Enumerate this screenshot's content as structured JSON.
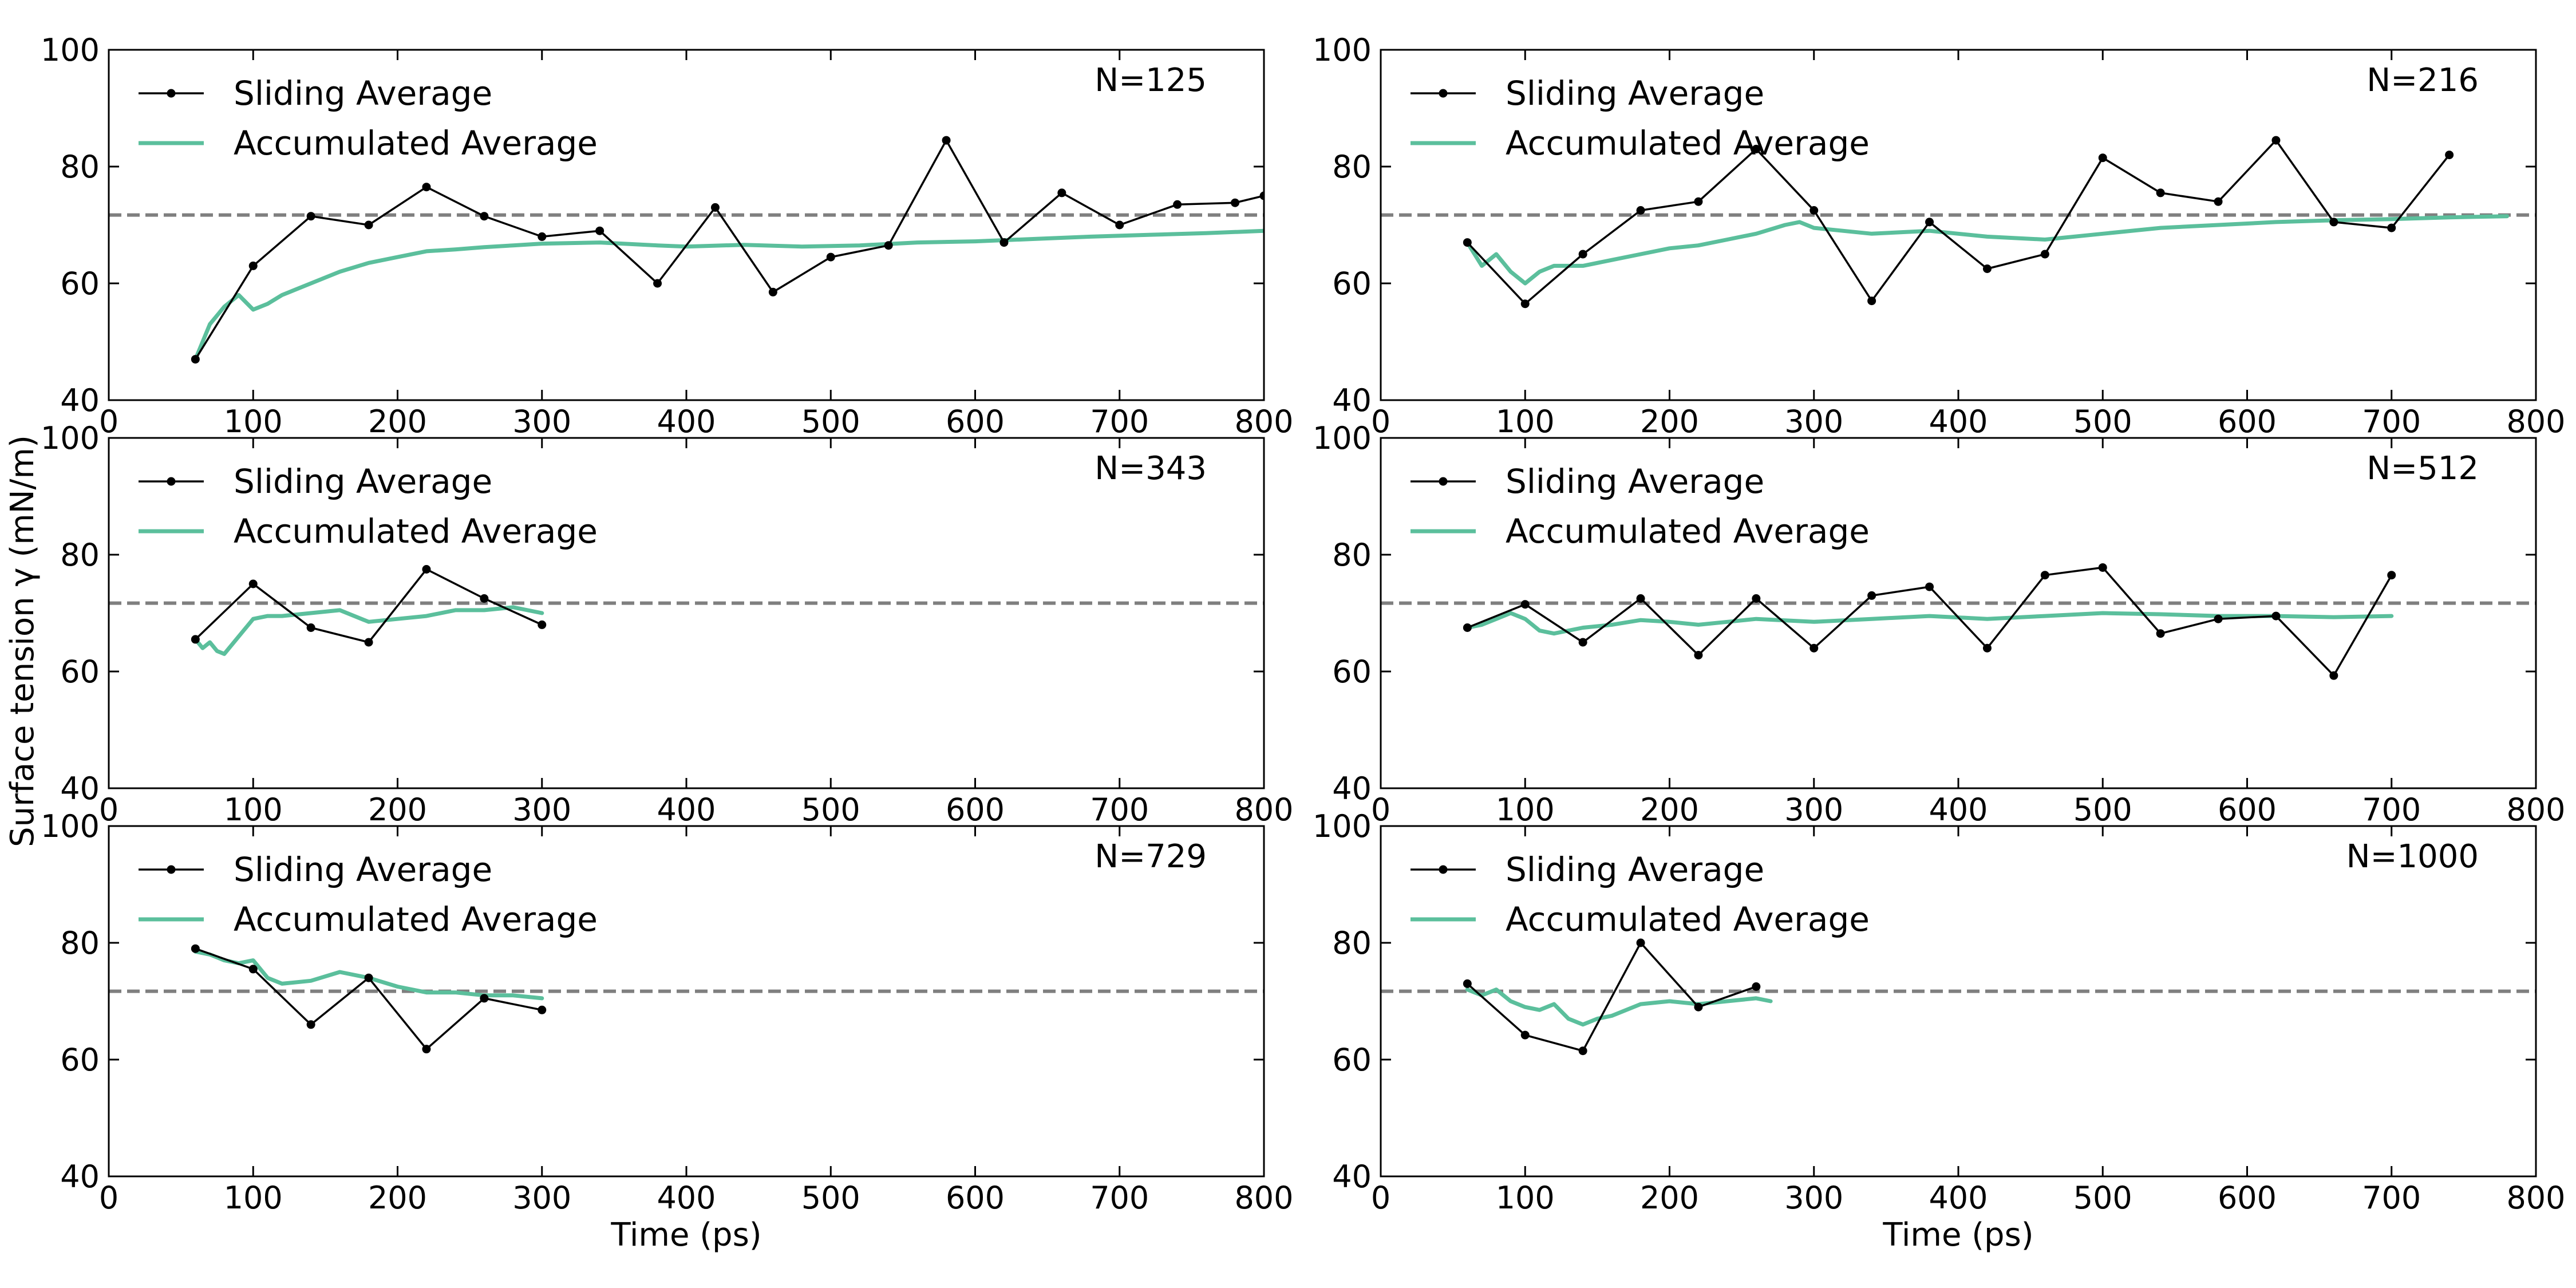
{
  "figure": {
    "ylabel": "Surface tension γ (mN/m)",
    "xlabel": "Time (ps)"
  },
  "colors": {
    "sliding": "#000000",
    "accumulated": "#5bbf9c",
    "reference": "#7f7f7f"
  },
  "chart_data": [
    {
      "type": "line",
      "annotation": "N=125",
      "xlim": [
        0,
        800
      ],
      "ylim": [
        40,
        100
      ],
      "xticks": [
        0,
        100,
        200,
        300,
        400,
        500,
        600,
        700,
        800
      ],
      "yticks": [
        40,
        60,
        80,
        100
      ],
      "xlabel": "",
      "ylabel": "",
      "reference_line": 71.7,
      "legend": {
        "location": "top-left",
        "entries": [
          "Sliding Average",
          "Accumulated Average"
        ]
      },
      "series": [
        {
          "name": "Sliding Average",
          "marker": "dot",
          "x": [
            60,
            100,
            140,
            180,
            220,
            260,
            300,
            340,
            380,
            420,
            460,
            500,
            540,
            580,
            620,
            660,
            700,
            740,
            780,
            800
          ],
          "y": [
            47,
            63,
            71.5,
            70,
            76.5,
            71.5,
            68,
            69,
            60,
            73,
            58.5,
            64.5,
            66.5,
            84.5,
            67,
            75.5,
            70,
            73.5,
            73.8,
            75
          ]
        },
        {
          "name": "Accumulated Average",
          "marker": "none",
          "x": [
            60,
            70,
            80,
            90,
            100,
            110,
            120,
            140,
            160,
            180,
            200,
            220,
            240,
            260,
            280,
            300,
            340,
            380,
            400,
            440,
            480,
            520,
            560,
            600,
            640,
            680,
            720,
            760,
            800
          ],
          "y": [
            47,
            53,
            56,
            58,
            55.5,
            56.5,
            58,
            60,
            62,
            63.5,
            64.5,
            65.5,
            65.8,
            66.2,
            66.5,
            66.8,
            67,
            66.5,
            66.3,
            66.6,
            66.3,
            66.5,
            67,
            67.2,
            67.6,
            68,
            68.3,
            68.6,
            69
          ]
        }
      ]
    },
    {
      "type": "line",
      "annotation": "N=216",
      "xlim": [
        0,
        800
      ],
      "ylim": [
        40,
        100
      ],
      "xticks": [
        0,
        100,
        200,
        300,
        400,
        500,
        600,
        700,
        800
      ],
      "yticks": [
        40,
        60,
        80,
        100
      ],
      "xlabel": "",
      "ylabel": "",
      "reference_line": 71.7,
      "legend": {
        "location": "top-left",
        "entries": [
          "Sliding Average",
          "Accumulated Average"
        ]
      },
      "series": [
        {
          "name": "Sliding Average",
          "marker": "dot",
          "x": [
            60,
            100,
            140,
            180,
            220,
            260,
            300,
            340,
            380,
            420,
            460,
            500,
            540,
            580,
            620,
            660,
            700,
            740
          ],
          "y": [
            67,
            56.5,
            65,
            72.5,
            74,
            83,
            72.5,
            57,
            70.5,
            62.5,
            65,
            81.5,
            75.5,
            74,
            84.5,
            70.5,
            69.5,
            82
          ]
        },
        {
          "name": "Accumulated Average",
          "marker": "none",
          "x": [
            60,
            70,
            80,
            90,
            100,
            110,
            120,
            140,
            160,
            180,
            200,
            220,
            240,
            260,
            280,
            290,
            300,
            320,
            340,
            380,
            420,
            460,
            500,
            540,
            580,
            620,
            660,
            700,
            740,
            780
          ],
          "y": [
            67,
            63,
            65,
            62,
            60,
            62,
            63,
            63,
            64,
            65,
            66,
            66.5,
            67.5,
            68.5,
            70,
            70.5,
            69.5,
            69,
            68.5,
            69,
            68,
            67.5,
            68.5,
            69.5,
            70,
            70.5,
            70.8,
            71,
            71.3,
            71.5
          ]
        }
      ]
    },
    {
      "type": "line",
      "annotation": "N=343",
      "xlim": [
        0,
        800
      ],
      "ylim": [
        40,
        100
      ],
      "xticks": [
        0,
        100,
        200,
        300,
        400,
        500,
        600,
        700,
        800
      ],
      "yticks": [
        40,
        60,
        80,
        100
      ],
      "xlabel": "",
      "ylabel": "",
      "reference_line": 71.7,
      "legend": {
        "location": "top-left",
        "entries": [
          "Sliding Average",
          "Accumulated Average"
        ]
      },
      "series": [
        {
          "name": "Sliding Average",
          "marker": "dot",
          "x": [
            60,
            100,
            140,
            180,
            220,
            260,
            300
          ],
          "y": [
            65.5,
            75,
            67.5,
            65,
            77.5,
            72.5,
            68
          ]
        },
        {
          "name": "Accumulated Average",
          "marker": "none",
          "x": [
            60,
            65,
            70,
            75,
            80,
            90,
            100,
            110,
            120,
            140,
            160,
            180,
            200,
            220,
            240,
            260,
            280,
            300
          ],
          "y": [
            65.5,
            64,
            65,
            63.5,
            63,
            66,
            69,
            69.5,
            69.5,
            70,
            70.5,
            68.5,
            69,
            69.5,
            70.5,
            70.5,
            71,
            70
          ]
        }
      ]
    },
    {
      "type": "line",
      "annotation": "N=512",
      "xlim": [
        0,
        800
      ],
      "ylim": [
        40,
        100
      ],
      "xticks": [
        0,
        100,
        200,
        300,
        400,
        500,
        600,
        700,
        800
      ],
      "yticks": [
        40,
        60,
        80,
        100
      ],
      "xlabel": "",
      "ylabel": "",
      "reference_line": 71.7,
      "legend": {
        "location": "top-left",
        "entries": [
          "Sliding Average",
          "Accumulated Average"
        ]
      },
      "series": [
        {
          "name": "Sliding Average",
          "marker": "dot",
          "x": [
            60,
            100,
            140,
            180,
            220,
            260,
            300,
            340,
            380,
            420,
            460,
            500,
            540,
            580,
            620,
            660,
            700
          ],
          "y": [
            67.5,
            71.5,
            65,
            72.5,
            62.8,
            72.5,
            64,
            73,
            74.5,
            64,
            76.5,
            77.8,
            66.5,
            69,
            69.5,
            59.3,
            76.5
          ]
        },
        {
          "name": "Accumulated Average",
          "marker": "none",
          "x": [
            60,
            70,
            80,
            90,
            100,
            110,
            120,
            140,
            160,
            180,
            200,
            220,
            240,
            260,
            300,
            340,
            380,
            420,
            460,
            500,
            540,
            580,
            620,
            660,
            700
          ],
          "y": [
            67.5,
            68,
            69,
            70,
            69,
            67,
            66.5,
            67.5,
            68,
            68.8,
            68.5,
            68,
            68.5,
            69,
            68.5,
            69,
            69.5,
            69,
            69.5,
            70,
            69.8,
            69.5,
            69.5,
            69.3,
            69.5
          ]
        }
      ]
    },
    {
      "type": "line",
      "annotation": "N=729",
      "xlim": [
        0,
        800
      ],
      "ylim": [
        40,
        100
      ],
      "xticks": [
        0,
        100,
        200,
        300,
        400,
        500,
        600,
        700,
        800
      ],
      "yticks": [
        40,
        60,
        80,
        100
      ],
      "xlabel": "Time (ps)",
      "ylabel": "",
      "reference_line": 71.7,
      "legend": {
        "location": "top-left",
        "entries": [
          "Sliding Average",
          "Accumulated Average"
        ]
      },
      "series": [
        {
          "name": "Sliding Average",
          "marker": "dot",
          "x": [
            60,
            100,
            140,
            180,
            220,
            260,
            300
          ],
          "y": [
            79,
            75.5,
            66,
            74,
            61.8,
            70.5,
            68.5
          ]
        },
        {
          "name": "Accumulated Average",
          "marker": "none",
          "x": [
            60,
            70,
            80,
            90,
            100,
            110,
            120,
            140,
            160,
            180,
            200,
            220,
            240,
            260,
            280,
            300
          ],
          "y": [
            78.5,
            78,
            77,
            76.5,
            77,
            74,
            73,
            73.5,
            75,
            74,
            72.5,
            71.5,
            71.5,
            71,
            71,
            70.5
          ]
        }
      ]
    },
    {
      "type": "line",
      "annotation": "N=1000",
      "xlim": [
        0,
        800
      ],
      "ylim": [
        40,
        100
      ],
      "xticks": [
        0,
        100,
        200,
        300,
        400,
        500,
        600,
        700,
        800
      ],
      "yticks": [
        40,
        60,
        80,
        100
      ],
      "xlabel": "Time (ps)",
      "ylabel": "",
      "reference_line": 71.7,
      "legend": {
        "location": "top-left",
        "entries": [
          "Sliding Average",
          "Accumulated Average"
        ]
      },
      "series": [
        {
          "name": "Sliding Average",
          "marker": "dot",
          "x": [
            60,
            100,
            140,
            180,
            220,
            260
          ],
          "y": [
            73,
            64.2,
            61.5,
            80,
            69,
            72.5
          ]
        },
        {
          "name": "Accumulated Average",
          "marker": "none",
          "x": [
            60,
            70,
            80,
            90,
            100,
            110,
            120,
            130,
            140,
            150,
            160,
            180,
            200,
            220,
            240,
            260,
            270
          ],
          "y": [
            72,
            71,
            72,
            70,
            69,
            68.5,
            69.5,
            67,
            66,
            67,
            67.5,
            69.5,
            70,
            69.5,
            70,
            70.5,
            70
          ]
        }
      ]
    }
  ]
}
